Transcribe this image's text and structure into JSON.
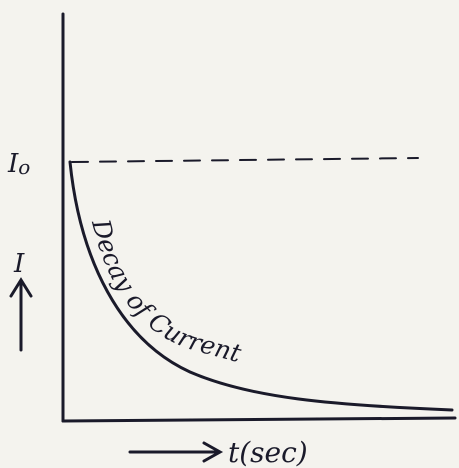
{
  "initial_current": {
    "symbol": "I",
    "subscript": "o"
  },
  "y_axis_label": "I",
  "curve_label": "Decay of Current",
  "x_axis_label": "t(sec)"
}
